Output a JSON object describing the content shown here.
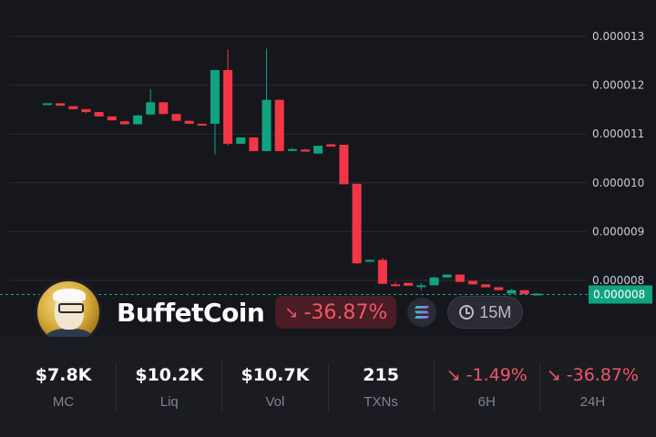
{
  "chart_data": {
    "type": "candlestick",
    "y_ticks": [
      "0.000013",
      "0.000012",
      "0.000011",
      "0.000010",
      "0.000009",
      "0.000008"
    ],
    "y_tick_values": [
      13,
      12,
      11,
      10,
      9,
      8
    ],
    "y_unit_note": "",
    "ylim": [
      7.5,
      13.4
    ],
    "grid": "horizontal",
    "current_price_label": "0.000008",
    "current_price": 7.72,
    "up_color": "#10a37f",
    "down_color": "#f23645",
    "candles": [
      {
        "o": 11.63,
        "h": 11.63,
        "l": 11.63,
        "c": 11.63
      },
      {
        "o": 11.63,
        "h": 11.63,
        "l": 11.58,
        "c": 11.58
      },
      {
        "o": 11.57,
        "h": 11.57,
        "l": 11.51,
        "c": 11.51
      },
      {
        "o": 11.51,
        "h": 11.51,
        "l": 11.42,
        "c": 11.45
      },
      {
        "o": 11.45,
        "h": 11.45,
        "l": 11.36,
        "c": 11.36
      },
      {
        "o": 11.36,
        "h": 11.36,
        "l": 11.28,
        "c": 11.28
      },
      {
        "o": 11.26,
        "h": 11.26,
        "l": 11.2,
        "c": 11.2
      },
      {
        "o": 11.2,
        "h": 11.4,
        "l": 11.2,
        "c": 11.38
      },
      {
        "o": 11.4,
        "h": 11.92,
        "l": 11.4,
        "c": 11.65
      },
      {
        "o": 11.65,
        "h": 11.65,
        "l": 11.41,
        "c": 11.41
      },
      {
        "o": 11.41,
        "h": 11.41,
        "l": 11.27,
        "c": 11.27
      },
      {
        "o": 11.27,
        "h": 11.27,
        "l": 11.21,
        "c": 11.21
      },
      {
        "o": 11.21,
        "h": 11.21,
        "l": 11.2,
        "c": 11.2
      },
      {
        "o": 11.21,
        "h": 12.31,
        "l": 10.58,
        "c": 12.31
      },
      {
        "o": 12.31,
        "h": 12.73,
        "l": 10.76,
        "c": 10.8
      },
      {
        "o": 10.8,
        "h": 10.93,
        "l": 10.8,
        "c": 10.93
      },
      {
        "o": 10.93,
        "h": 10.93,
        "l": 10.65,
        "c": 10.65
      },
      {
        "o": 10.65,
        "h": 12.75,
        "l": 10.65,
        "c": 11.7
      },
      {
        "o": 11.7,
        "h": 11.7,
        "l": 10.65,
        "c": 10.65
      },
      {
        "o": 10.69,
        "h": 10.72,
        "l": 10.67,
        "c": 10.69
      },
      {
        "o": 10.68,
        "h": 10.7,
        "l": 10.64,
        "c": 10.64
      },
      {
        "o": 10.6,
        "h": 10.76,
        "l": 10.6,
        "c": 10.76
      },
      {
        "o": 10.79,
        "h": 10.79,
        "l": 10.74,
        "c": 10.74
      },
      {
        "o": 10.78,
        "h": 10.78,
        "l": 9.97,
        "c": 9.97
      },
      {
        "o": 9.98,
        "h": 9.98,
        "l": 8.33,
        "c": 8.35
      },
      {
        "o": 8.4,
        "h": 8.43,
        "l": 8.38,
        "c": 8.42
      },
      {
        "o": 8.42,
        "h": 8.46,
        "l": 7.93,
        "c": 7.93
      },
      {
        "o": 7.92,
        "h": 7.97,
        "l": 7.9,
        "c": 7.9
      },
      {
        "o": 7.95,
        "h": 7.95,
        "l": 7.89,
        "c": 7.89
      },
      {
        "o": 7.89,
        "h": 7.94,
        "l": 7.8,
        "c": 7.9
      },
      {
        "o": 7.9,
        "h": 8.08,
        "l": 7.9,
        "c": 8.06
      },
      {
        "o": 8.06,
        "h": 8.12,
        "l": 8.06,
        "c": 8.12
      },
      {
        "o": 8.12,
        "h": 8.12,
        "l": 7.97,
        "c": 7.97
      },
      {
        "o": 7.99,
        "h": 7.99,
        "l": 7.92,
        "c": 7.92
      },
      {
        "o": 7.92,
        "h": 7.92,
        "l": 7.86,
        "c": 7.86
      },
      {
        "o": 7.86,
        "h": 7.86,
        "l": 7.8,
        "c": 7.8
      },
      {
        "o": 7.73,
        "h": 7.82,
        "l": 7.73,
        "c": 7.8
      },
      {
        "o": 7.8,
        "h": 7.8,
        "l": 7.72,
        "c": 7.72
      },
      {
        "o": 7.72,
        "h": 7.74,
        "l": 7.7,
        "c": 7.73
      }
    ]
  },
  "token": {
    "name": "BuffetCoin",
    "change": "-36.87%",
    "interval": "15M",
    "avatar_icon": "portrait-coin",
    "chain_icon": "solana-icon"
  },
  "stats": [
    {
      "value": "$7.8K",
      "label": "MC",
      "negative": false
    },
    {
      "value": "$10.2K",
      "label": "Liq",
      "negative": false
    },
    {
      "value": "$10.7K",
      "label": "Vol",
      "negative": false
    },
    {
      "value": "215",
      "label": "TXNs",
      "negative": false
    },
    {
      "value": "-1.49%",
      "label": "6H",
      "negative": true
    },
    {
      "value": "-36.87%",
      "label": "24H",
      "negative": true
    }
  ],
  "colors": {
    "background": "#16171c",
    "negative": "#f0566a",
    "positive": "#10a37f"
  }
}
